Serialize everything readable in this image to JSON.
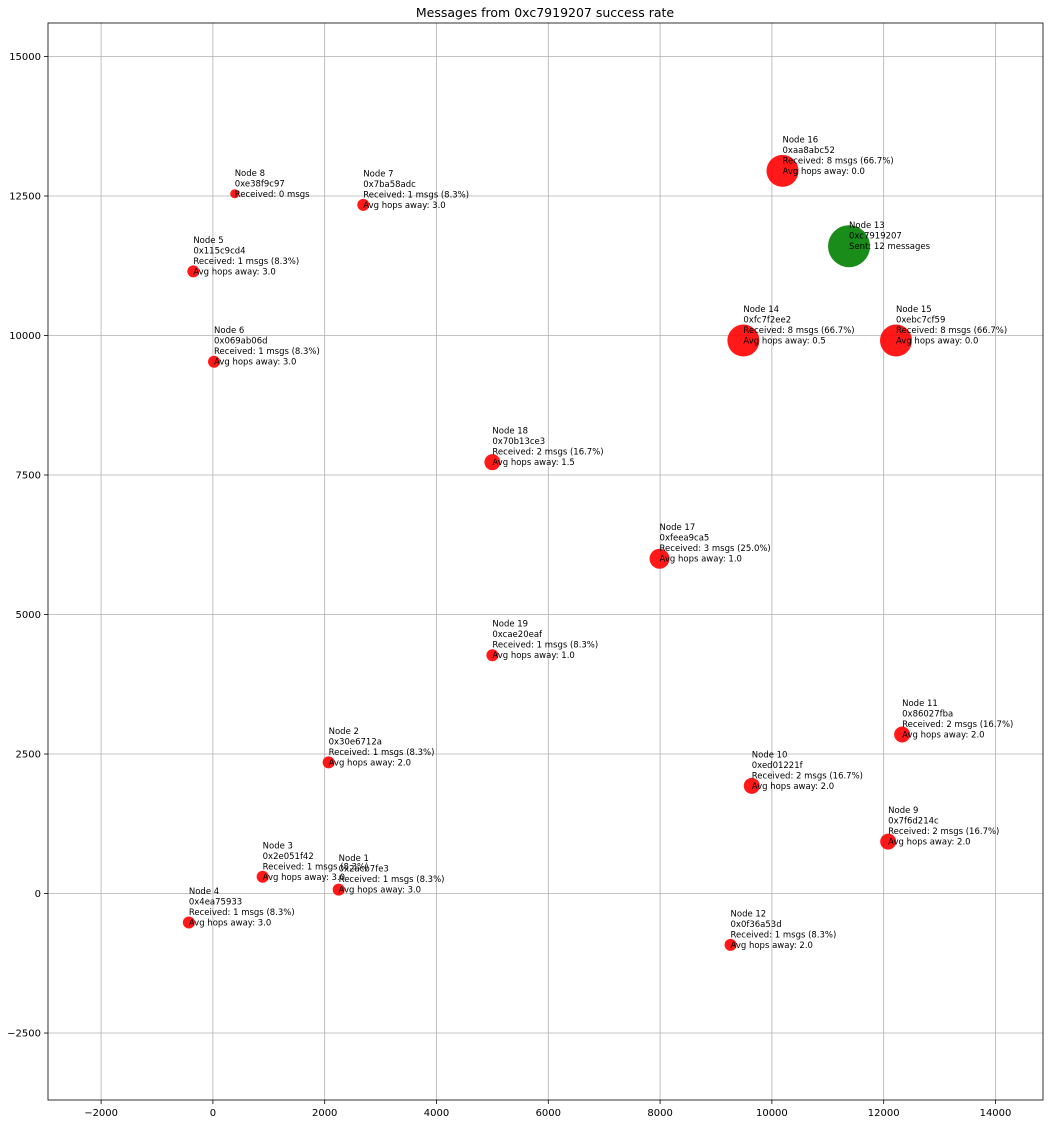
{
  "chart_data": {
    "type": "scatter",
    "title": "Messages from 0xc7919207 success rate",
    "xlabel": "",
    "ylabel": "",
    "xlim": [
      -2950,
      14850
    ],
    "ylim": [
      -3700,
      15600
    ],
    "x_ticks": [
      -2000,
      0,
      2000,
      4000,
      6000,
      8000,
      10000,
      12000,
      14000
    ],
    "y_ticks": [
      -2500,
      0,
      2500,
      5000,
      7500,
      10000,
      12500,
      15000
    ],
    "x_tick_labels": [
      "−2000",
      "0",
      "2000",
      "4000",
      "6000",
      "8000",
      "10000",
      "12000",
      "14000"
    ],
    "y_tick_labels": [
      "−2500",
      "0",
      "2500",
      "5000",
      "7500",
      "10000",
      "12500",
      "15000"
    ],
    "grid": true,
    "colors": {
      "received": "#ff0000",
      "sender": "#008000",
      "grid": "#b0b0b0"
    },
    "points": [
      {
        "x": 2250,
        "y": 70,
        "msgs": 1,
        "role": "received",
        "labels": [
          "Node 1",
          "0x2acb7fe3",
          "Received: 1 msgs (8.3%)",
          "Avg hops away: 3.0"
        ]
      },
      {
        "x": 2070,
        "y": 2350,
        "msgs": 1,
        "role": "received",
        "labels": [
          "Node 2",
          "0x30e6712a",
          "Received: 1 msgs (8.3%)",
          "Avg hops away: 2.0"
        ]
      },
      {
        "x": 890,
        "y": 300,
        "msgs": 1,
        "role": "received",
        "labels": [
          "Node 3",
          "0x2e051f42",
          "Received: 1 msgs (8.3%)",
          "Avg hops away: 3.0"
        ]
      },
      {
        "x": -430,
        "y": -520,
        "msgs": 1,
        "role": "received",
        "labels": [
          "Node 4",
          "0x4ea75933",
          "Received: 1 msgs (8.3%)",
          "Avg hops away: 3.0"
        ]
      },
      {
        "x": -350,
        "y": 11150,
        "msgs": 1,
        "role": "received",
        "labels": [
          "Node 5",
          "0x115c9cd4",
          "Received: 1 msgs (8.3%)",
          "Avg hops away: 3.0"
        ]
      },
      {
        "x": 20,
        "y": 9530,
        "msgs": 1,
        "role": "received",
        "labels": [
          "Node 6",
          "0x069ab06d",
          "Received: 1 msgs (8.3%)",
          "Avg hops away: 3.0"
        ]
      },
      {
        "x": 2690,
        "y": 12340,
        "msgs": 1,
        "role": "received",
        "labels": [
          "Node 7",
          "0x7ba58adc",
          "Received: 1 msgs (8.3%)",
          "Avg hops away: 3.0"
        ]
      },
      {
        "x": 390,
        "y": 12540,
        "msgs": 0,
        "role": "received",
        "labels": [
          "Node 8",
          "0xe38f9c97",
          "Received: 0 msgs"
        ]
      },
      {
        "x": 12080,
        "y": 930,
        "msgs": 2,
        "role": "received",
        "labels": [
          "Node 9",
          "0x7f6d214c",
          "Received: 2 msgs (16.7%)",
          "Avg hops away: 2.0"
        ]
      },
      {
        "x": 9640,
        "y": 1930,
        "msgs": 2,
        "role": "received",
        "labels": [
          "Node 10",
          "0xed01221f",
          "Received: 2 msgs (16.7%)",
          "Avg hops away: 2.0"
        ]
      },
      {
        "x": 12330,
        "y": 2850,
        "msgs": 2,
        "role": "received",
        "labels": [
          "Node 11",
          "0x86027fba",
          "Received: 2 msgs (16.7%)",
          "Avg hops away: 2.0"
        ]
      },
      {
        "x": 9260,
        "y": -920,
        "msgs": 1,
        "role": "received",
        "labels": [
          "Node 12",
          "0x0f36a53d",
          "Received: 1 msgs (8.3%)",
          "Avg hops away: 2.0"
        ]
      },
      {
        "x": 11380,
        "y": 11600,
        "msgs": 12,
        "role": "sender",
        "labels": [
          "Node 13",
          "0xc7919207",
          "Sent: 12 messages"
        ]
      },
      {
        "x": 9490,
        "y": 9910,
        "msgs": 8,
        "role": "received",
        "labels": [
          "Node 14",
          "0xfc7f2ee2",
          "Received: 8 msgs (66.7%)",
          "Avg hops away: 0.5"
        ]
      },
      {
        "x": 12220,
        "y": 9910,
        "msgs": 8,
        "role": "received",
        "labels": [
          "Node 15",
          "0xebc7cf59",
          "Received: 8 msgs (66.7%)",
          "Avg hops away: 0.0"
        ]
      },
      {
        "x": 10190,
        "y": 12950,
        "msgs": 8,
        "role": "received",
        "labels": [
          "Node 16",
          "0xaa8abc52",
          "Received: 8 msgs (66.7%)",
          "Avg hops away: 0.0"
        ]
      },
      {
        "x": 7990,
        "y": 6000,
        "msgs": 3,
        "role": "received",
        "labels": [
          "Node 17",
          "0xfeea9ca5",
          "Received: 3 msgs (25.0%)",
          "Avg hops away: 1.0"
        ]
      },
      {
        "x": 5000,
        "y": 7730,
        "msgs": 2,
        "role": "received",
        "labels": [
          "Node 18",
          "0x70b13ce3",
          "Received: 2 msgs (16.7%)",
          "Avg hops away: 1.5"
        ]
      },
      {
        "x": 5000,
        "y": 4270,
        "msgs": 1,
        "role": "received",
        "labels": [
          "Node 19",
          "0xcae20eaf",
          "Received: 1 msgs (8.3%)",
          "Avg hops away: 1.0"
        ]
      }
    ]
  }
}
